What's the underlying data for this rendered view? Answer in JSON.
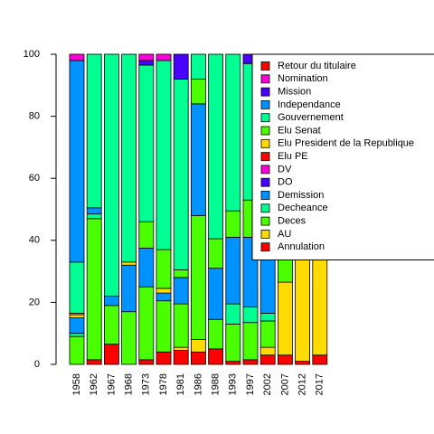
{
  "chart_data": {
    "type": "stacked_bar",
    "categories": [
      "1958",
      "1962",
      "1967",
      "1968",
      "1973",
      "1978",
      "1981",
      "1986",
      "1988",
      "1993",
      "1997",
      "2002",
      "2007",
      "2012",
      "2017"
    ],
    "ylim": [
      0,
      100
    ],
    "yticks": [
      0,
      20,
      40,
      60,
      80,
      100
    ],
    "legend": "top-right",
    "series": [
      {
        "name": "Annulation",
        "color": "#FF0000",
        "values": [
          0,
          1.5,
          6.5,
          0,
          1.5,
          4,
          4.5,
          4,
          5,
          1,
          1.5,
          3,
          3,
          1,
          3
        ]
      },
      {
        "name": "AU",
        "color": "#FFDB00",
        "values": [
          0,
          0,
          0,
          0,
          0,
          0,
          1,
          4,
          0,
          0,
          0,
          2.5,
          23.5,
          40,
          50
        ]
      },
      {
        "name": "Deces",
        "color": "#49FF00",
        "values": [
          9,
          45.5,
          12.5,
          17,
          23.5,
          16.5,
          14,
          40,
          9.5,
          12,
          12,
          8.5,
          10,
          10,
          0
        ]
      },
      {
        "name": "Decheance",
        "color": "#00FF92",
        "values": [
          1,
          1.5,
          0,
          0,
          0,
          0,
          0,
          0,
          0,
          6.5,
          5,
          2.5,
          0,
          0,
          0
        ]
      },
      {
        "name": "Demission",
        "color": "#0092FF",
        "values": [
          5,
          2,
          3,
          15,
          12.5,
          2.5,
          8.5,
          36,
          16.5,
          21.5,
          22.5,
          23.5,
          13.5,
          0,
          0
        ]
      },
      {
        "name": "DO",
        "color": "#4900FF",
        "values": [
          0,
          0,
          0,
          0,
          0,
          0,
          0,
          0,
          0,
          0,
          0,
          0,
          0,
          0,
          0
        ]
      },
      {
        "name": "DV",
        "color": "#FF00DB",
        "values": [
          0,
          0,
          0,
          0,
          0,
          0,
          0,
          0,
          0,
          0,
          0,
          0,
          0,
          0,
          0
        ]
      },
      {
        "name": "Elu PE",
        "color": "#FF0000",
        "values": [
          0,
          0,
          0,
          0,
          0,
          0,
          0,
          0,
          0,
          0,
          0,
          0,
          0,
          0,
          0
        ]
      },
      {
        "name": "Elu President de la Republique",
        "color": "#FFDB00",
        "values": [
          1,
          0,
          0,
          1,
          0,
          1.5,
          0,
          0,
          0,
          0,
          0,
          0,
          0,
          0,
          0
        ]
      },
      {
        "name": "Elu Senat",
        "color": "#49FF00",
        "values": [
          0.5,
          0,
          0,
          0,
          8.5,
          12.5,
          2.5,
          8,
          9.5,
          8.5,
          12,
          10,
          0,
          0,
          0
        ]
      },
      {
        "name": "Gouvernement",
        "color": "#00FF92",
        "values": [
          16.5,
          49.5,
          78,
          67,
          50.5,
          61,
          61.5,
          8,
          59.5,
          50.5,
          44,
          50,
          50,
          49,
          47
        ]
      },
      {
        "name": "Independance",
        "color": "#0092FF",
        "values": [
          65,
          0,
          0,
          0,
          0,
          0,
          0,
          0,
          0,
          0,
          0,
          0,
          0,
          0,
          0
        ]
      },
      {
        "name": "Mission",
        "color": "#4900FF",
        "values": [
          0,
          0,
          0,
          0,
          1.5,
          0,
          8,
          0,
          0,
          0,
          3,
          0,
          0,
          0,
          0
        ]
      },
      {
        "name": "Nomination",
        "color": "#FF00DB",
        "values": [
          2,
          0,
          0,
          0,
          2,
          2,
          0,
          0,
          0,
          0,
          0,
          0,
          0,
          0,
          0
        ]
      },
      {
        "name": "Retour du titulaire",
        "color": "#FF0000",
        "values": [
          0,
          0,
          0,
          0,
          0,
          0,
          0,
          0,
          0,
          0,
          0,
          0,
          0,
          0,
          0
        ]
      }
    ]
  }
}
